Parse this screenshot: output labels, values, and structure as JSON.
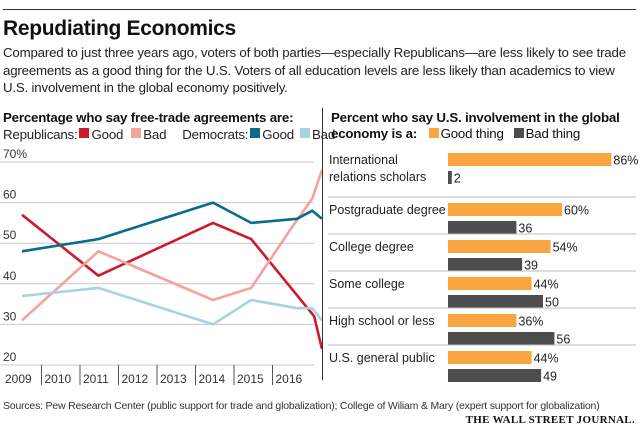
{
  "header": {
    "title": "Repudiating Economics",
    "dek": "Compared to just three years ago, voters of both parties—especially Republicans—are less likely to see trade agreements as a good thing for the U.S. Voters of all education levels are less likely than academics to view U.S. involvement in the global economy positively."
  },
  "left_panel": {
    "heading": "Percentage who say free-trade agreements are:",
    "legend": {
      "rep_label": "Republicans:",
      "dem_label": "Democrats:",
      "good": "Good",
      "bad": "Bad"
    }
  },
  "right_panel": {
    "heading_line1": "Percent who say U.S. involvement in the global",
    "heading_line2": "economy is a:",
    "legend": {
      "good": "Good thing",
      "bad": "Bad thing"
    }
  },
  "colors": {
    "rep_good": "#cc1b2b",
    "rep_bad": "#f4a39a",
    "dem_good": "#0a6b8a",
    "dem_bad": "#a9d2e3",
    "good_thing": "#f9a540",
    "bad_thing": "#4d4d4d",
    "grid": "#c8c8c8",
    "axis_text": "#333333"
  },
  "chart_data": [
    {
      "type": "line",
      "title": "Percentage who say free-trade agreements are:",
      "xlabel": "",
      "ylabel": "",
      "ylim": [
        20,
        70
      ],
      "yticks": [
        20,
        30,
        40,
        50,
        60,
        70
      ],
      "ytick_labels": [
        "20",
        "30",
        "40",
        "50",
        "60",
        "70%"
      ],
      "xlim": [
        2009,
        2017
      ],
      "xtick_labels": [
        "2009",
        "2010",
        "2011",
        "2012",
        "2013",
        "2014",
        "2015",
        "2016"
      ],
      "grid": true,
      "legend": "top",
      "series": [
        {
          "name": "Republicans: Good",
          "key": "rep_good",
          "x": [
            2009.0,
            2011.0,
            2014.0,
            2015.0,
            2016.65,
            2016.85
          ],
          "values": [
            57,
            42,
            55,
            51,
            32,
            24
          ]
        },
        {
          "name": "Republicans: Bad",
          "key": "rep_bad",
          "x": [
            2009.0,
            2011.0,
            2014.0,
            2015.0,
            2016.0,
            2016.6,
            2016.85
          ],
          "values": [
            31,
            48,
            36,
            39,
            53,
            61,
            68
          ]
        },
        {
          "name": "Democrats: Good",
          "key": "dem_good",
          "x": [
            2009.0,
            2011.0,
            2014.0,
            2015.0,
            2016.2,
            2016.6,
            2016.85
          ],
          "values": [
            48,
            51,
            60,
            55,
            56,
            58,
            56
          ]
        },
        {
          "name": "Democrats: Bad",
          "key": "dem_bad",
          "x": [
            2009.0,
            2011.0,
            2014.0,
            2015.0,
            2016.2,
            2016.6,
            2016.85
          ],
          "values": [
            37,
            39,
            30,
            36,
            34,
            34,
            31
          ]
        }
      ]
    },
    {
      "type": "bar",
      "orientation": "horizontal",
      "title": "Percent who say U.S. involvement in the global economy is a:",
      "categories": [
        "International relations scholars",
        "Postgraduate degree",
        "College degree",
        "Some college",
        "High school or less",
        "U.S. general public"
      ],
      "category_lines": [
        [
          "International",
          "relations scholars"
        ],
        [
          "Postgraduate degree"
        ],
        [
          "College degree"
        ],
        [
          "Some college"
        ],
        [
          "High school or less"
        ],
        [
          "U.S. general public"
        ]
      ],
      "xlim": [
        0,
        100
      ],
      "grid": false,
      "legend": "top",
      "series": [
        {
          "name": "Good thing",
          "key": "good_thing",
          "values": [
            86,
            60,
            54,
            44,
            36,
            44
          ],
          "labels": [
            "86%",
            "60%",
            "54%",
            "44%",
            "36%",
            "44%"
          ]
        },
        {
          "name": "Bad thing",
          "key": "bad_thing",
          "values": [
            2,
            36,
            39,
            50,
            56,
            49
          ],
          "labels": [
            "2",
            "36",
            "39",
            "50",
            "56",
            "49"
          ]
        }
      ]
    }
  ],
  "footer": {
    "sources": "Sources: Pew Research Center (public support for trade and globalization); College of Wiliam & Mary (expert support for globalization)",
    "brand": "THE WALL STREET JOURNAL."
  }
}
